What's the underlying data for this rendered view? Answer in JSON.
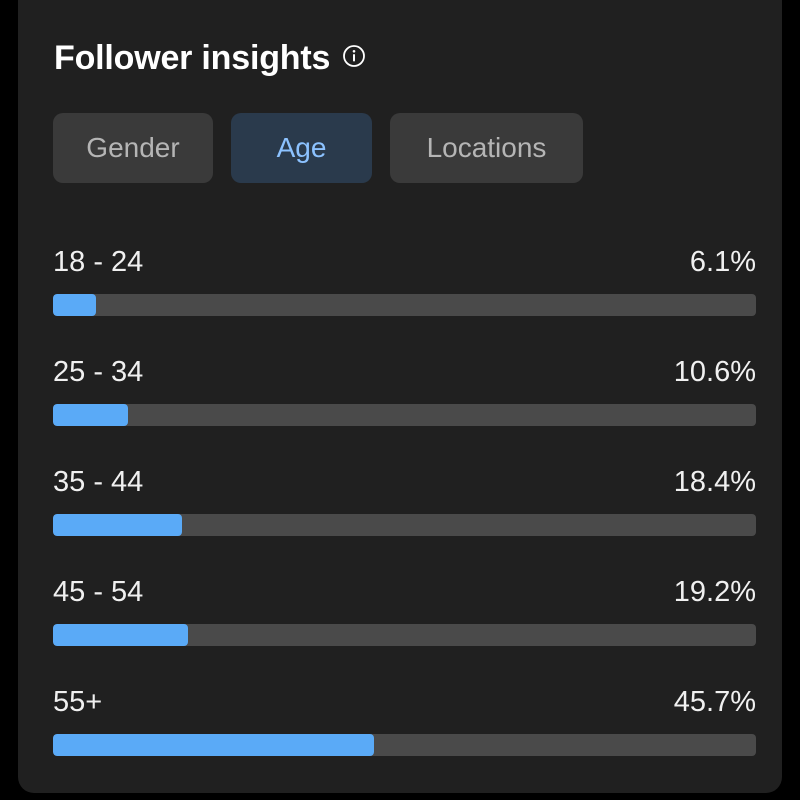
{
  "header": {
    "title": "Follower insights",
    "info_icon": "info-icon"
  },
  "tabs": [
    {
      "label": "Gender",
      "active": false
    },
    {
      "label": "Age",
      "active": true
    },
    {
      "label": "Locations",
      "active": false
    }
  ],
  "colors": {
    "card_bg": "#202020",
    "bar_fill": "#5aaaf7",
    "bar_track": "#4a4a4a",
    "active_tab_text": "#8cc2ff",
    "active_tab_bg": "#2a3a4c"
  },
  "age_groups": [
    {
      "range": "18 - 24",
      "percent_label": "6.1%",
      "value": 6.1
    },
    {
      "range": "25 - 34",
      "percent_label": "10.6%",
      "value": 10.6
    },
    {
      "range": "35 - 44",
      "percent_label": "18.4%",
      "value": 18.4
    },
    {
      "range": "45 - 54",
      "percent_label": "19.2%",
      "value": 19.2
    },
    {
      "range": "55+",
      "percent_label": "45.7%",
      "value": 45.7
    }
  ]
}
